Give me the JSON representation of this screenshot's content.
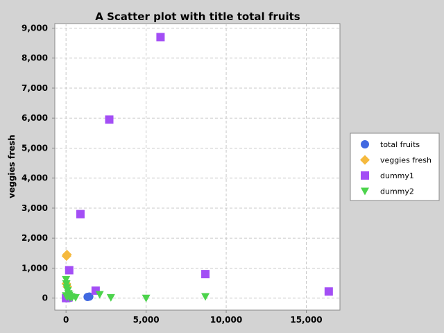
{
  "chart_data": {
    "type": "scatter",
    "title": "A Scatter plot with title total fruits",
    "xlabel": "",
    "ylabel": "veggies fresh",
    "xlim": [
      -700,
      17100
    ],
    "ylim": [
      -400,
      9150
    ],
    "x_ticks": [
      0,
      5000,
      10000,
      15000
    ],
    "x_tick_labels": [
      "0",
      "5,000",
      "10,000",
      "15,000"
    ],
    "y_ticks": [
      0,
      1000,
      2000,
      3000,
      4000,
      5000,
      6000,
      7000,
      8000,
      9000
    ],
    "y_tick_labels": [
      "0",
      "1,000",
      "2,000",
      "3,000",
      "4,000",
      "5,000",
      "6,000",
      "7,000",
      "8,000",
      "9,000"
    ],
    "grid": true,
    "legend_position": "right",
    "series": [
      {
        "name": "total fruits",
        "marker": "circle",
        "color": "#4169e1",
        "points": [
          [
            0,
            10
          ],
          [
            50,
            30
          ],
          [
            100,
            20
          ],
          [
            150,
            60
          ],
          [
            200,
            40
          ],
          [
            80,
            0
          ],
          [
            1350,
            40
          ],
          [
            1450,
            50
          ]
        ]
      },
      {
        "name": "veggies fresh",
        "marker": "diamond",
        "color": "#f5b93d",
        "points": [
          [
            30,
            1400
          ],
          [
            60,
            1450
          ],
          [
            20,
            480
          ],
          [
            80,
            380
          ],
          [
            150,
            60
          ],
          [
            100,
            30
          ]
        ]
      },
      {
        "name": "dummy1",
        "marker": "square",
        "color": "#a34ef5",
        "points": [
          [
            5900,
            8700
          ],
          [
            2700,
            5950
          ],
          [
            900,
            2800
          ],
          [
            200,
            930
          ],
          [
            8700,
            800
          ],
          [
            1850,
            250
          ],
          [
            16400,
            220
          ],
          [
            0,
            0
          ],
          [
            50,
            10
          ],
          [
            150,
            20
          ]
        ]
      },
      {
        "name": "dummy2",
        "marker": "triangle-down",
        "color": "#4cd34c",
        "points": [
          [
            0,
            620
          ],
          [
            20,
            480
          ],
          [
            50,
            350
          ],
          [
            100,
            250
          ],
          [
            150,
            150
          ],
          [
            200,
            100
          ],
          [
            300,
            50
          ],
          [
            400,
            30
          ],
          [
            600,
            20
          ],
          [
            0,
            80
          ],
          [
            80,
            40
          ],
          [
            250,
            10
          ],
          [
            2100,
            120
          ],
          [
            2800,
            20
          ],
          [
            5000,
            0
          ],
          [
            8700,
            50
          ]
        ]
      }
    ]
  }
}
